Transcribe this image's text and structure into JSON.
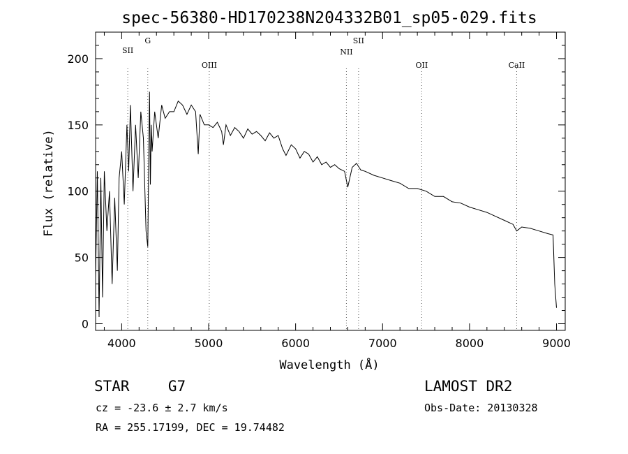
{
  "chart_data": {
    "type": "line",
    "title": "spec-56380-HD170238N204332B01_sp05-029.fits",
    "xlabel": "Wavelength (Å)",
    "ylabel": "Flux (relative)",
    "xlim": [
      3700,
      9100
    ],
    "ylim": [
      -5,
      220
    ],
    "x_ticks": [
      4000,
      5000,
      6000,
      7000,
      8000,
      9000
    ],
    "y_ticks": [
      0,
      50,
      100,
      150,
      200
    ],
    "grid": false,
    "legend": "none",
    "line_markers": [
      {
        "label": "SII",
        "x": 4070
      },
      {
        "label": "G",
        "x": 4300
      },
      {
        "label": "OIII",
        "x": 5007
      },
      {
        "label": "NII",
        "x": 6584
      },
      {
        "label": "SII",
        "x": 6724
      },
      {
        "label": "OII",
        "x": 7450
      },
      {
        "label": "CaII",
        "x": 8542
      }
    ],
    "series": [
      {
        "x": [
          3700,
          3720,
          3740,
          3760,
          3780,
          3800,
          3830,
          3860,
          3890,
          3920,
          3950,
          3970,
          4000,
          4030,
          4060,
          4080,
          4100,
          4130,
          4160,
          4190,
          4220,
          4250,
          4280,
          4300,
          4320,
          4330,
          4340,
          4350,
          4380,
          4420,
          4460,
          4500,
          4550,
          4600,
          4650,
          4700,
          4750,
          4800,
          4850,
          4880,
          4900,
          4950,
          5000,
          5050,
          5100,
          5150,
          5170,
          5200,
          5250,
          5300,
          5350,
          5400,
          5450,
          5500,
          5550,
          5600,
          5650,
          5700,
          5750,
          5800,
          5850,
          5890,
          5950,
          6000,
          6050,
          6100,
          6150,
          6200,
          6250,
          6300,
          6350,
          6400,
          6450,
          6500,
          6563,
          6600,
          6650,
          6700,
          6750,
          6800,
          6900,
          7000,
          7100,
          7200,
          7300,
          7400,
          7500,
          7600,
          7700,
          7800,
          7900,
          8000,
          8100,
          8200,
          8300,
          8400,
          8500,
          8542,
          8600,
          8700,
          8800,
          8900,
          8960,
          8980,
          9000
        ],
        "y": [
          35,
          115,
          5,
          110,
          20,
          115,
          70,
          100,
          30,
          95,
          40,
          110,
          130,
          90,
          150,
          115,
          165,
          100,
          150,
          110,
          160,
          140,
          70,
          58,
          175,
          105,
          150,
          130,
          160,
          140,
          165,
          155,
          160,
          160,
          168,
          165,
          158,
          165,
          160,
          128,
          158,
          150,
          150,
          148,
          152,
          145,
          135,
          150,
          142,
          148,
          145,
          140,
          147,
          143,
          145,
          142,
          138,
          144,
          140,
          142,
          132,
          127,
          135,
          132,
          125,
          130,
          128,
          122,
          126,
          120,
          122,
          118,
          120,
          117,
          115,
          103,
          118,
          121,
          116,
          115,
          112,
          110,
          108,
          106,
          102,
          102,
          100,
          96,
          96,
          92,
          91,
          88,
          86,
          84,
          81,
          78,
          75,
          70,
          73,
          72,
          70,
          68,
          67,
          30,
          12
        ]
      }
    ],
    "annotations": {
      "object_type": "STAR",
      "subclass": "G7",
      "survey": "LAMOST DR2",
      "cz": "cz = -23.6 ± 2.7 km/s",
      "obs_date": "Obs-Date: 20130328",
      "coords": "RA = 255.17199, DEC =  19.74482"
    }
  }
}
